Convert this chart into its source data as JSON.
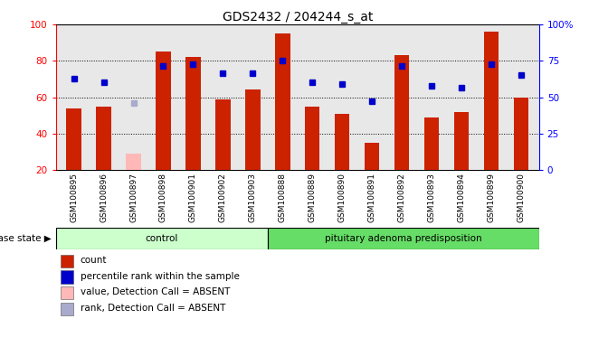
{
  "title": "GDS2432 / 204244_s_at",
  "samples": [
    "GSM100895",
    "GSM100896",
    "GSM100897",
    "GSM100898",
    "GSM100901",
    "GSM100902",
    "GSM100903",
    "GSM100888",
    "GSM100889",
    "GSM100890",
    "GSM100891",
    "GSM100892",
    "GSM100893",
    "GSM100894",
    "GSM100899",
    "GSM100900"
  ],
  "bar_values": [
    54,
    55,
    0,
    85,
    82,
    59,
    64,
    95,
    55,
    51,
    35,
    83,
    49,
    52,
    96,
    60
  ],
  "absent_bar_values": [
    0,
    0,
    29,
    0,
    0,
    0,
    0,
    0,
    0,
    0,
    0,
    0,
    0,
    0,
    0,
    0
  ],
  "dot_values": [
    70,
    68,
    0,
    77,
    78,
    73,
    73,
    80,
    68,
    67,
    58,
    77,
    66,
    65,
    78,
    72
  ],
  "absent_dot_values": [
    0,
    0,
    57,
    0,
    0,
    0,
    0,
    0,
    0,
    0,
    0,
    0,
    0,
    0,
    0,
    0
  ],
  "control_count": 7,
  "bar_color": "#cc2200",
  "absent_bar_color": "#ffb8b8",
  "dot_color": "#0000cc",
  "absent_dot_color": "#aaaacc",
  "control_color": "#ccffcc",
  "adenoma_color": "#66dd66",
  "ylim_min": 20,
  "ylim_max": 100,
  "yticks": [
    20,
    40,
    60,
    80,
    100
  ],
  "right_yticklabels": [
    "0",
    "25",
    "50",
    "75",
    "100%"
  ],
  "grid_lines": [
    40,
    60,
    80
  ],
  "plot_bg_color": "#e8e8e8",
  "legend_items": [
    {
      "label": "count",
      "color": "#cc2200"
    },
    {
      "label": "percentile rank within the sample",
      "color": "#0000cc"
    },
    {
      "label": "value, Detection Call = ABSENT",
      "color": "#ffb8b8"
    },
    {
      "label": "rank, Detection Call = ABSENT",
      "color": "#aaaacc"
    }
  ]
}
